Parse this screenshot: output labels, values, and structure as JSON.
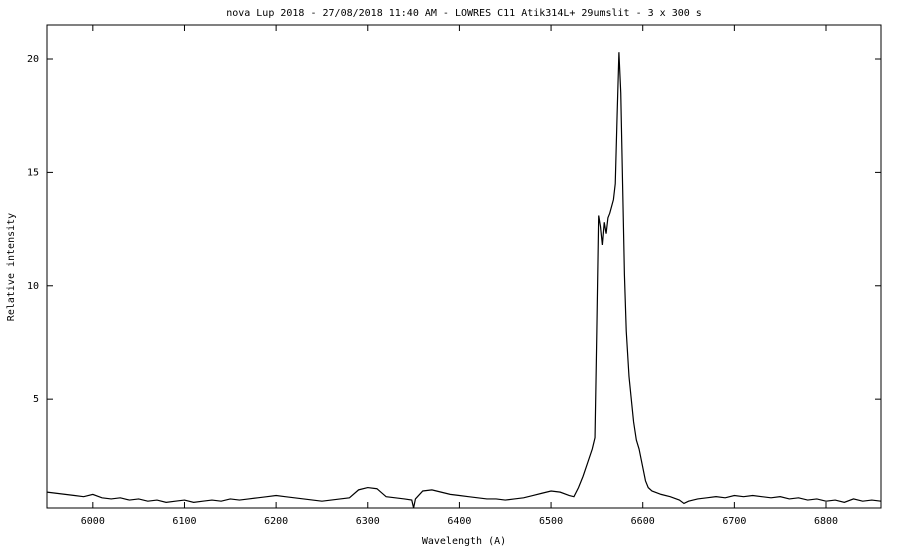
{
  "chart_data": {
    "type": "line",
    "title": "nova Lup 2018 - 27/08/2018 11:40 AM - LOWRES C11 Atik314L+ 29umslit - 3 x 300 s",
    "x_label": "Wavelength (A)",
    "y_label": "Relative intensity",
    "color": "#000000",
    "xlim": [
      5950,
      6860
    ],
    "ylim": [
      0.2,
      21.5
    ],
    "xticks": [
      6000,
      6100,
      6200,
      6300,
      6400,
      6500,
      6600,
      6700,
      6800
    ],
    "yticks": [
      5,
      10,
      15,
      20
    ],
    "grid": false,
    "x": [
      5950,
      5960,
      5970,
      5980,
      5990,
      6000,
      6010,
      6020,
      6030,
      6040,
      6050,
      6060,
      6070,
      6080,
      6090,
      6100,
      6110,
      6120,
      6130,
      6140,
      6150,
      6160,
      6170,
      6180,
      6190,
      6200,
      6210,
      6220,
      6230,
      6240,
      6250,
      6260,
      6270,
      6280,
      6290,
      6300,
      6310,
      6320,
      6330,
      6340,
      6348,
      6350,
      6352,
      6360,
      6370,
      6380,
      6390,
      6400,
      6410,
      6420,
      6430,
      6440,
      6450,
      6460,
      6470,
      6480,
      6490,
      6500,
      6510,
      6520,
      6525,
      6530,
      6535,
      6540,
      6545,
      6548,
      6550,
      6552,
      6554,
      6556,
      6558,
      6560,
      6562,
      6564,
      6566,
      6568,
      6570,
      6572,
      6574,
      6576,
      6578,
      6580,
      6582,
      6585,
      6588,
      6590,
      6593,
      6596,
      6600,
      6603,
      6606,
      6610,
      6620,
      6630,
      6640,
      6645,
      6650,
      6660,
      6670,
      6680,
      6690,
      6700,
      6710,
      6720,
      6730,
      6740,
      6750,
      6760,
      6770,
      6780,
      6790,
      6800,
      6810,
      6820,
      6830,
      6840,
      6850,
      6860
    ],
    "values": [
      0.9,
      0.85,
      0.8,
      0.75,
      0.7,
      0.8,
      0.65,
      0.6,
      0.65,
      0.55,
      0.6,
      0.5,
      0.55,
      0.45,
      0.5,
      0.55,
      0.45,
      0.5,
      0.55,
      0.5,
      0.6,
      0.55,
      0.6,
      0.65,
      0.7,
      0.75,
      0.7,
      0.65,
      0.6,
      0.55,
      0.5,
      0.55,
      0.6,
      0.65,
      1.0,
      1.1,
      1.05,
      0.7,
      0.65,
      0.6,
      0.55,
      0.2,
      0.6,
      0.95,
      1.0,
      0.9,
      0.8,
      0.75,
      0.7,
      0.65,
      0.6,
      0.6,
      0.55,
      0.6,
      0.65,
      0.75,
      0.85,
      0.95,
      0.9,
      0.75,
      0.7,
      1.1,
      1.6,
      2.2,
      2.8,
      3.3,
      8,
      13.1,
      12.6,
      11.8,
      12.8,
      12.3,
      13.0,
      13.2,
      13.5,
      13.8,
      14.5,
      17.5,
      20.3,
      18.5,
      14.5,
      10.5,
      8.0,
      6.0,
      4.8,
      4.0,
      3.2,
      2.8,
      2.0,
      1.4,
      1.1,
      0.95,
      0.8,
      0.7,
      0.55,
      0.4,
      0.5,
      0.6,
      0.65,
      0.7,
      0.65,
      0.75,
      0.7,
      0.75,
      0.7,
      0.65,
      0.7,
      0.6,
      0.65,
      0.55,
      0.6,
      0.5,
      0.55,
      0.45,
      0.6,
      0.5,
      0.55,
      0.5
    ]
  }
}
